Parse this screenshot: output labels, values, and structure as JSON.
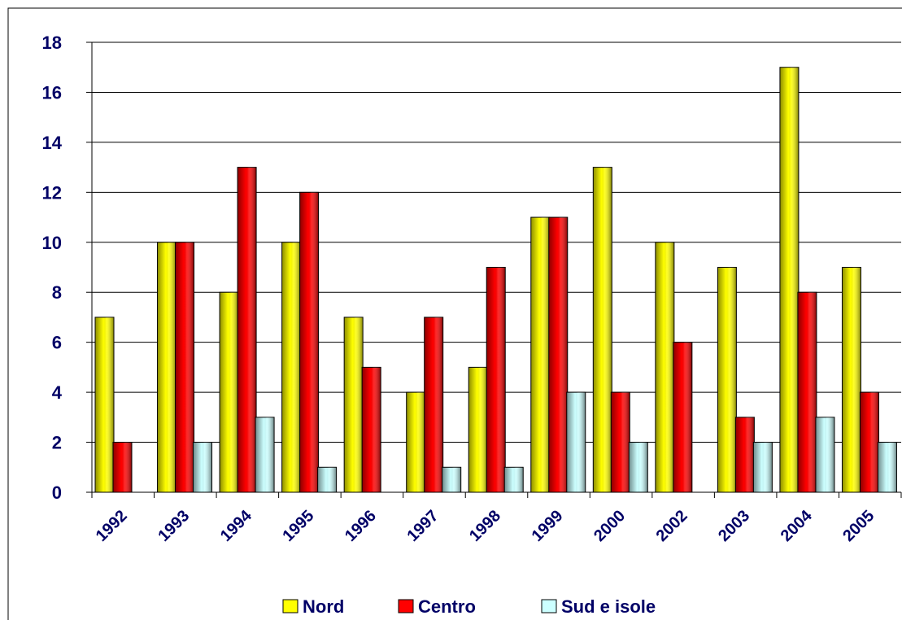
{
  "chart_data": {
    "type": "bar",
    "categories": [
      "1992",
      "1993",
      "1994",
      "1995",
      "1996",
      "1997",
      "1998",
      "1999",
      "2000",
      "2002",
      "2003",
      "2004",
      "2005"
    ],
    "series": [
      {
        "name": "Nord",
        "color": "#ffff00",
        "values": [
          7,
          10,
          8,
          10,
          7,
          4,
          5,
          11,
          13,
          10,
          9,
          17,
          9
        ]
      },
      {
        "name": "Centro",
        "color": "#ff0000",
        "values": [
          2,
          10,
          13,
          12,
          5,
          7,
          9,
          11,
          4,
          6,
          3,
          8,
          4
        ]
      },
      {
        "name": "Sud e isole",
        "color": "#ccffff",
        "values": [
          0,
          2,
          3,
          1,
          0,
          1,
          1,
          4,
          2,
          0,
          2,
          3,
          2
        ]
      }
    ],
    "ylim": [
      0,
      18
    ],
    "yticks": [
      0,
      2,
      4,
      6,
      8,
      10,
      12,
      14,
      16,
      18
    ],
    "grid": true,
    "legend": "bottom"
  }
}
